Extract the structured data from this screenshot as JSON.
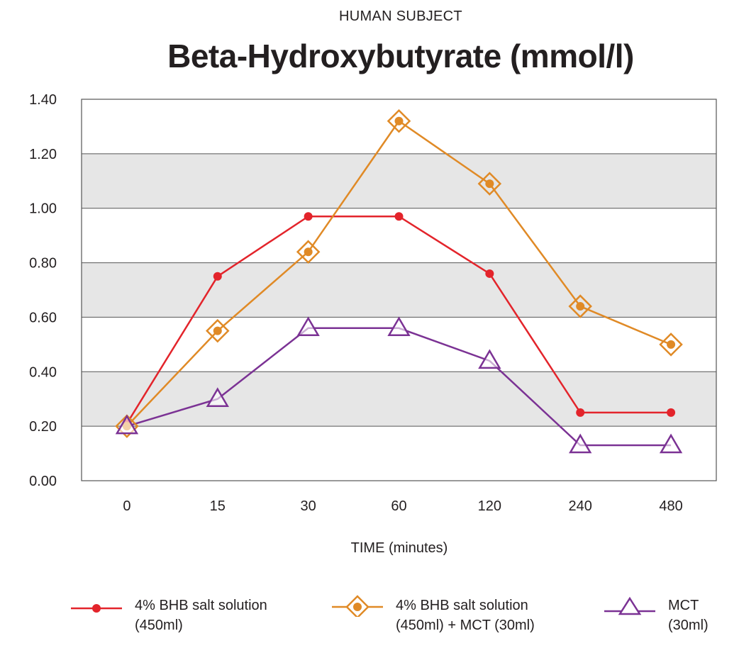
{
  "header": {
    "subtitle": "HUMAN SUBJECT",
    "title": "Beta-Hydroxybutyrate (mmol/l)"
  },
  "chart_data": {
    "type": "line",
    "title": "Beta-Hydroxybutyrate (mmol/l)",
    "subtitle": "HUMAN SUBJECT",
    "xlabel": "TIME (minutes)",
    "ylabel": "",
    "categories": [
      "0",
      "15",
      "30",
      "60",
      "120",
      "240",
      "480"
    ],
    "ylim": [
      0,
      1.4
    ],
    "yticks": [
      "0.00",
      "0.20",
      "0.40",
      "0.60",
      "0.80",
      "1.00",
      "1.20",
      "1.40"
    ],
    "grid": "alternating horizontal bands",
    "legend_position": "bottom",
    "series": [
      {
        "name": "4% BHB salt solution (450ml)",
        "legend_lines": [
          "4% BHB salt solution",
          "(450ml)"
        ],
        "color": "#e3242b",
        "marker": "dot",
        "values": [
          0.21,
          0.75,
          0.97,
          0.97,
          0.76,
          0.25,
          0.25
        ]
      },
      {
        "name": "4% BHB salt solution (450ml) + MCT (30ml)",
        "legend_lines": [
          "4% BHB salt solution",
          "(450ml) + MCT (30ml)"
        ],
        "color": "#e08a26",
        "marker": "diamond",
        "values": [
          0.2,
          0.55,
          0.84,
          1.32,
          1.09,
          0.64,
          0.5
        ]
      },
      {
        "name": "MCT (30ml)",
        "legend_lines": [
          "MCT",
          "(30ml)"
        ],
        "color": "#7b3294",
        "marker": "triangle",
        "values": [
          0.2,
          0.3,
          0.56,
          0.56,
          0.44,
          0.13,
          0.13
        ]
      }
    ]
  }
}
